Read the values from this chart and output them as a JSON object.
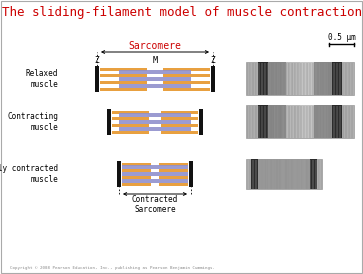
{
  "title": "The sliding-filament model of muscle contraction",
  "title_color": "#cc0000",
  "title_fontsize": 9,
  "background_color": "#ffffff",
  "sarcomere_label": "Sarcomere",
  "sarcomere_label_color": "#cc0000",
  "M_label": "M",
  "Z_label": "Z",
  "contracted_label": "Contracted\nSarcomere",
  "scale_label": "0.5 μm",
  "row_labels": [
    "Relaxed\nmuscle",
    "Contracting\nmuscle",
    "Fully contracted\nmuscle"
  ],
  "row_types": [
    "relaxed",
    "contracting",
    "contracted"
  ],
  "thin_filament_color": "#e8a040",
  "thick_filament_color": "#9090cc",
  "z_line_color": "#111111",
  "copyright": "Copyright © 2008 Pearson Education, Inc., publishing as Pearson Benjamin Cummings."
}
